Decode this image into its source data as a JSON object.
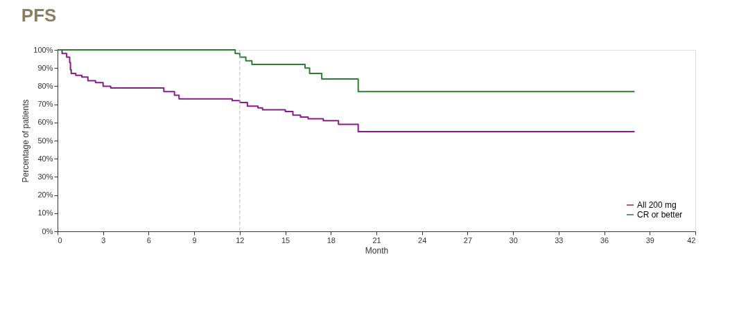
{
  "chart_data": {
    "type": "step",
    "title": "PFS",
    "xlabel": "Month",
    "ylabel": "Percentage of patients",
    "xlim": [
      0,
      42
    ],
    "xticks": [
      0,
      3,
      6,
      9,
      12,
      15,
      18,
      21,
      24,
      27,
      30,
      33,
      36,
      39,
      42
    ],
    "ylim": [
      0,
      100
    ],
    "yticks": [
      {
        "value": 0,
        "label": "0%"
      },
      {
        "value": 10,
        "label": "10%"
      },
      {
        "value": 20,
        "label": "20%"
      },
      {
        "value": 30,
        "label": "30%"
      },
      {
        "value": 40,
        "label": "40%"
      },
      {
        "value": 50,
        "label": "50%"
      },
      {
        "value": 60,
        "label": "60%"
      },
      {
        "value": 70,
        "label": "70%"
      },
      {
        "value": 80,
        "label": "80%"
      },
      {
        "value": 90,
        "label": "90%"
      },
      {
        "value": 100,
        "label": "100%"
      }
    ],
    "grid": false,
    "legend": "bottom right",
    "line_style": "solid",
    "ref_lines": [
      {
        "axis": "x",
        "value": 12,
        "color": "#b4b4e6",
        "line_style": "dashed"
      }
    ],
    "series": [
      {
        "name": "All 200 mg",
        "color": "#8b1a89",
        "x": [
          0,
          0.3,
          0.6,
          0.8,
          0.85,
          0.9,
          1.2,
          1.6,
          2.0,
          2.5,
          3.0,
          3.5,
          7.0,
          7.7,
          8.0,
          11.5,
          12.0,
          12.5,
          13.2,
          13.5,
          15.0,
          15.5,
          16.0,
          16.5,
          17.5,
          18.5,
          19.8,
          38
        ],
        "values": [
          100,
          98,
          96,
          93,
          89,
          87,
          86,
          85,
          83,
          82,
          80,
          79,
          77,
          75,
          73,
          72,
          71,
          69,
          68,
          67,
          66,
          64,
          63,
          62,
          61,
          59,
          55,
          55
        ]
      },
      {
        "name": "CR or better",
        "color": "#2e7d32",
        "x": [
          0,
          11.7,
          12.0,
          12.4,
          12.8,
          16.3,
          16.6,
          17.4,
          19.8,
          38
        ],
        "values": [
          100,
          98,
          96,
          94,
          92,
          90,
          87,
          84,
          77,
          77
        ]
      }
    ]
  }
}
